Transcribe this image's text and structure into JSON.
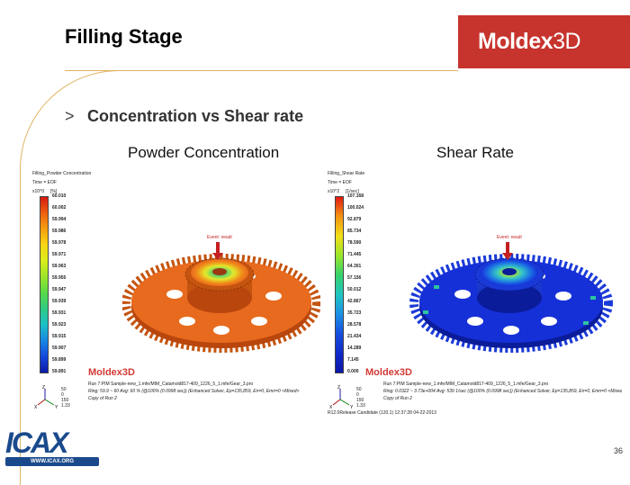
{
  "slide": {
    "title": "Filling Stage",
    "bullet_marker": ">",
    "subtitle": "Concentration vs Shear rate",
    "page_number": "36"
  },
  "brand": {
    "name_bold": "Moldex",
    "name_thin": "3D"
  },
  "left_panel": {
    "heading": "Powder Concentration",
    "plot_title": "Filling_Powder Concentration",
    "time_label": "Time = EOF",
    "unit": "[%]",
    "scale_exponent": "x10^0",
    "ticks": [
      "60.010",
      "60.002",
      "59.994",
      "59.986",
      "59.978",
      "59.971",
      "59.963",
      "59.955",
      "59.947",
      "59.939",
      "59.931",
      "59.923",
      "59.915",
      "59.907",
      "59.899",
      "59.891"
    ],
    "gate_label": "Event: result",
    "footer_logo": "Moldex3D",
    "run_line": "Run 7:PIM Sample-new_1.mfe/MIM_Catamold817-409_1226_5_1.mfe/Gear_3.pro",
    "stats_line": "Ring: 59.9 ~ 60 Avg: 60 % (@100% (0.0998 sec)) (Enhanced Solver, Ep=135,859, En=0, Emn=0 <Mixed>",
    "copy_line": "Copy of Run 2",
    "scale_numbers": [
      "50",
      "0",
      "150",
      "1.33"
    ],
    "axes": {
      "x": "X",
      "y": "Y",
      "z": "Z"
    },
    "colors": {
      "gear_main": "#e86a1e",
      "gear_dark": "#b8460d"
    }
  },
  "right_panel": {
    "heading": "Shear Rate",
    "plot_title": "Filling_Shear Rate",
    "time_label": "Time = EOF",
    "unit": "[1/sec]",
    "scale_exponent": "x10^2",
    "ticks": [
      "107.168",
      "100.024",
      "92.879",
      "85.734",
      "78.590",
      "71.445",
      "64.301",
      "57.156",
      "50.012",
      "42.867",
      "35.723",
      "28.578",
      "21.434",
      "14.289",
      "7.145",
      "0.000"
    ],
    "gate_label": "Event: result",
    "footer_logo": "Moldex3D",
    "run_line": "Run 7:PIM Sample-new_1.mfe/MIM_Catamold817-409_1226_5_1.mfe/Gear_3.pro",
    "stats_line": "Ring: 0.0322 ~ 3.73e+004 Avg: 539 1/sec (@100% (0.0998 sec)) (Enhanced Solver, Ep=135,859, En=0, Emn=0 <Mixed>",
    "copy_line": "Copy of Run 2",
    "scale_numbers": [
      "50",
      "0",
      "150",
      "1.33"
    ],
    "release_line": "R12.0Release Candidate (120.1) 12:37:28 04-22-2013",
    "axes": {
      "x": "X",
      "y": "Y",
      "z": "Z"
    },
    "colors": {
      "gear_main": "#1630d8",
      "gear_dark": "#0b1c9a"
    }
  },
  "footer_logo": {
    "text": "ICAX",
    "tagline": "WWW.ICAX.ORG"
  }
}
